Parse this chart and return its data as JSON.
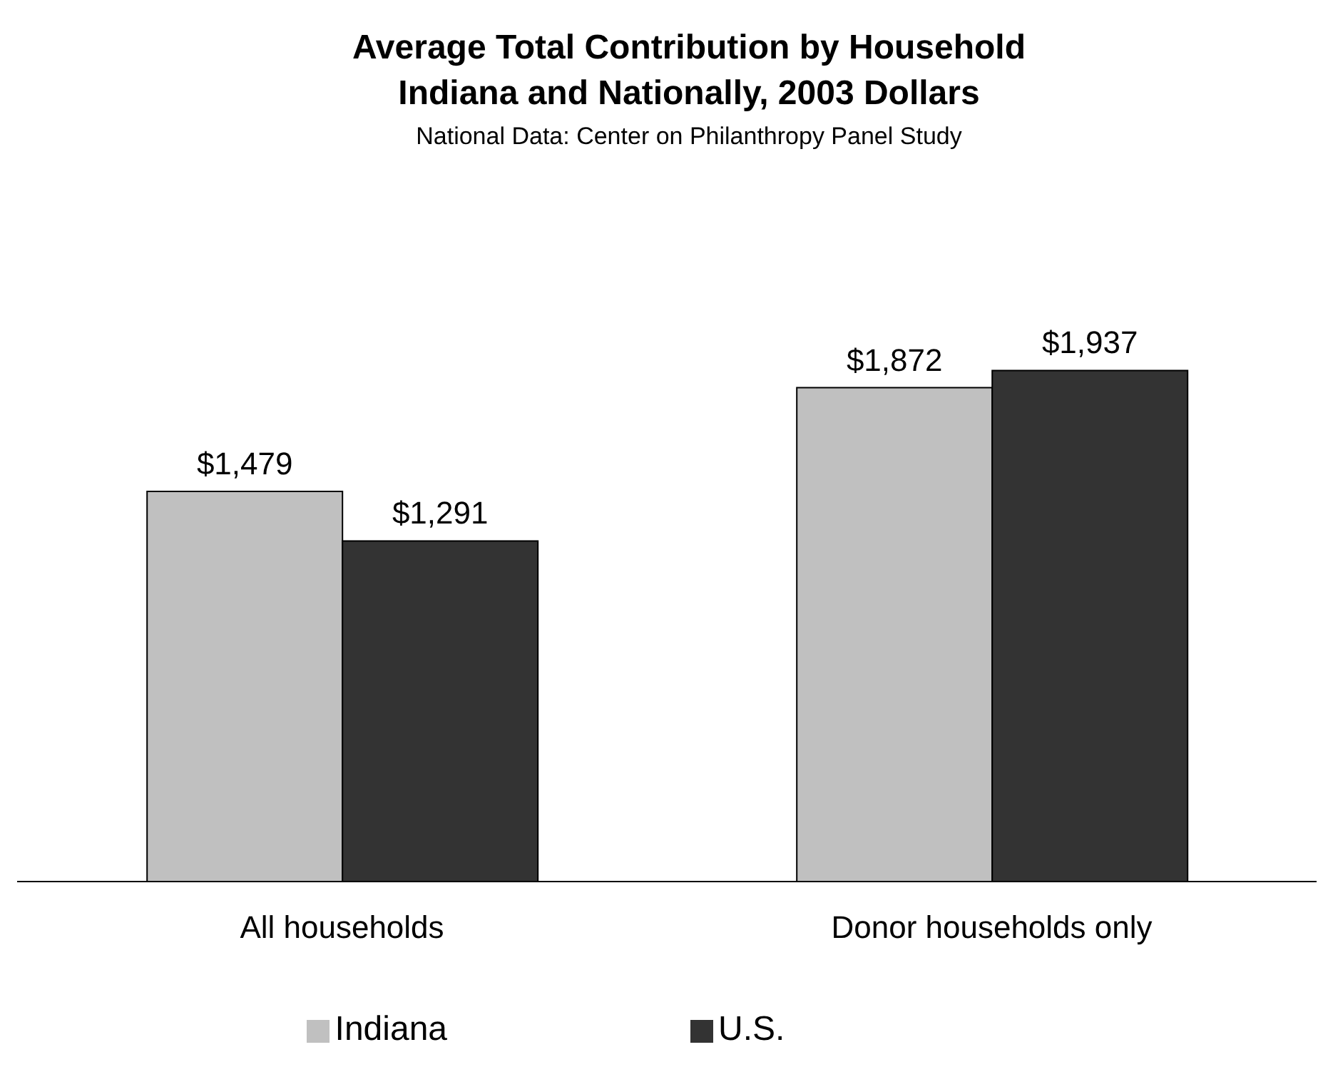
{
  "chart_data": {
    "type": "bar",
    "title": "Average Total Contribution by Household\nIndiana and Nationally, 2003 Dollars",
    "subtitle": "National Data: Center on Philanthropy Panel Study",
    "categories": [
      "All households",
      "Donor households only"
    ],
    "series": [
      {
        "name": "Indiana",
        "color": "#c0c0c0",
        "values": [
          1479,
          1872
        ],
        "value_labels": [
          "$1,479",
          "$1,872"
        ]
      },
      {
        "name": "U.S.",
        "color": "#333333",
        "values": [
          1291,
          1937
        ],
        "value_labels": [
          "$1,291",
          "$1,937"
        ]
      }
    ],
    "tick_labels": "x",
    "legend": "bottom"
  }
}
